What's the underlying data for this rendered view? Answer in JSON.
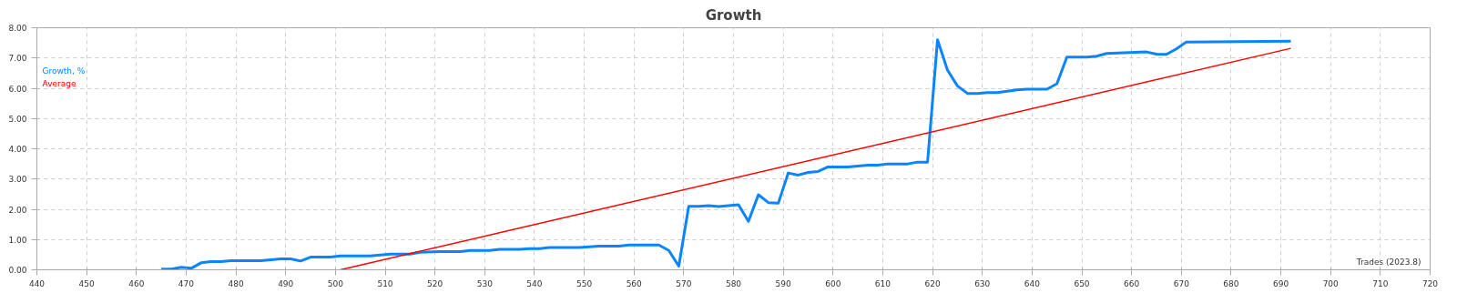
{
  "chart_data": {
    "type": "line",
    "title": "Growth",
    "series": [
      {
        "name": "Growth, %",
        "color": "#0a84ff",
        "x": [
          465,
          467,
          469,
          471,
          473,
          475,
          477,
          479,
          485,
          489,
          491,
          493,
          495,
          499,
          501,
          507,
          511,
          515,
          517,
          521,
          525,
          527,
          531,
          533,
          537,
          539,
          541,
          543,
          549,
          553,
          557,
          559,
          565,
          567,
          569,
          571,
          573,
          575,
          577,
          581,
          583,
          585,
          587,
          589,
          591,
          593,
          595,
          597,
          599,
          603,
          607,
          609,
          611,
          615,
          617,
          619,
          621,
          623,
          625,
          627,
          629,
          631,
          633,
          635,
          637,
          639,
          643,
          645,
          647,
          651,
          653,
          655,
          663,
          665,
          667,
          669,
          671,
          692
        ],
        "values": [
          0.02,
          0.02,
          0.08,
          0.05,
          0.23,
          0.27,
          0.27,
          0.3,
          0.3,
          0.36,
          0.36,
          0.29,
          0.42,
          0.42,
          0.46,
          0.46,
          0.52,
          0.52,
          0.58,
          0.6,
          0.6,
          0.64,
          0.64,
          0.68,
          0.68,
          0.7,
          0.7,
          0.74,
          0.74,
          0.78,
          0.78,
          0.82,
          0.82,
          0.64,
          0.12,
          2.1,
          2.1,
          2.12,
          2.09,
          2.15,
          1.6,
          2.48,
          2.22,
          2.2,
          3.2,
          3.13,
          3.22,
          3.25,
          3.4,
          3.4,
          3.46,
          3.46,
          3.5,
          3.5,
          3.56,
          3.56,
          7.6,
          6.6,
          6.08,
          5.83,
          5.83,
          5.86,
          5.86,
          5.9,
          5.95,
          5.97,
          5.97,
          6.15,
          7.03,
          7.03,
          7.06,
          7.15,
          7.2,
          7.13,
          7.12,
          7.3,
          7.53,
          7.56
        ]
      },
      {
        "name": "Average",
        "color": "#ff0000",
        "x": [
          501,
          692
        ],
        "values": [
          0,
          7.32
        ]
      }
    ],
    "xlim": [
      440,
      720
    ],
    "xticks": [
      440,
      450,
      460,
      470,
      480,
      490,
      500,
      510,
      520,
      530,
      540,
      550,
      560,
      570,
      580,
      590,
      600,
      610,
      620,
      630,
      640,
      650,
      660,
      670,
      680,
      690,
      700,
      710,
      720
    ],
    "ylim": [
      0,
      8
    ],
    "yticks": [
      {
        "value": 0,
        "label": "0.00"
      },
      {
        "value": 1,
        "label": "1.00"
      },
      {
        "value": 2,
        "label": "2.00"
      },
      {
        "value": 3,
        "label": "3.00"
      },
      {
        "value": 4,
        "label": "4.00"
      },
      {
        "value": 5,
        "label": "5.00"
      },
      {
        "value": 6,
        "label": "6.00"
      },
      {
        "value": 7,
        "label": "7.00"
      },
      {
        "value": 8,
        "label": "8.00"
      }
    ],
    "grid": true,
    "legend": "top left",
    "line_style": "solid",
    "marker": "none",
    "annotations": [
      "Trades (2023.8)"
    ]
  }
}
